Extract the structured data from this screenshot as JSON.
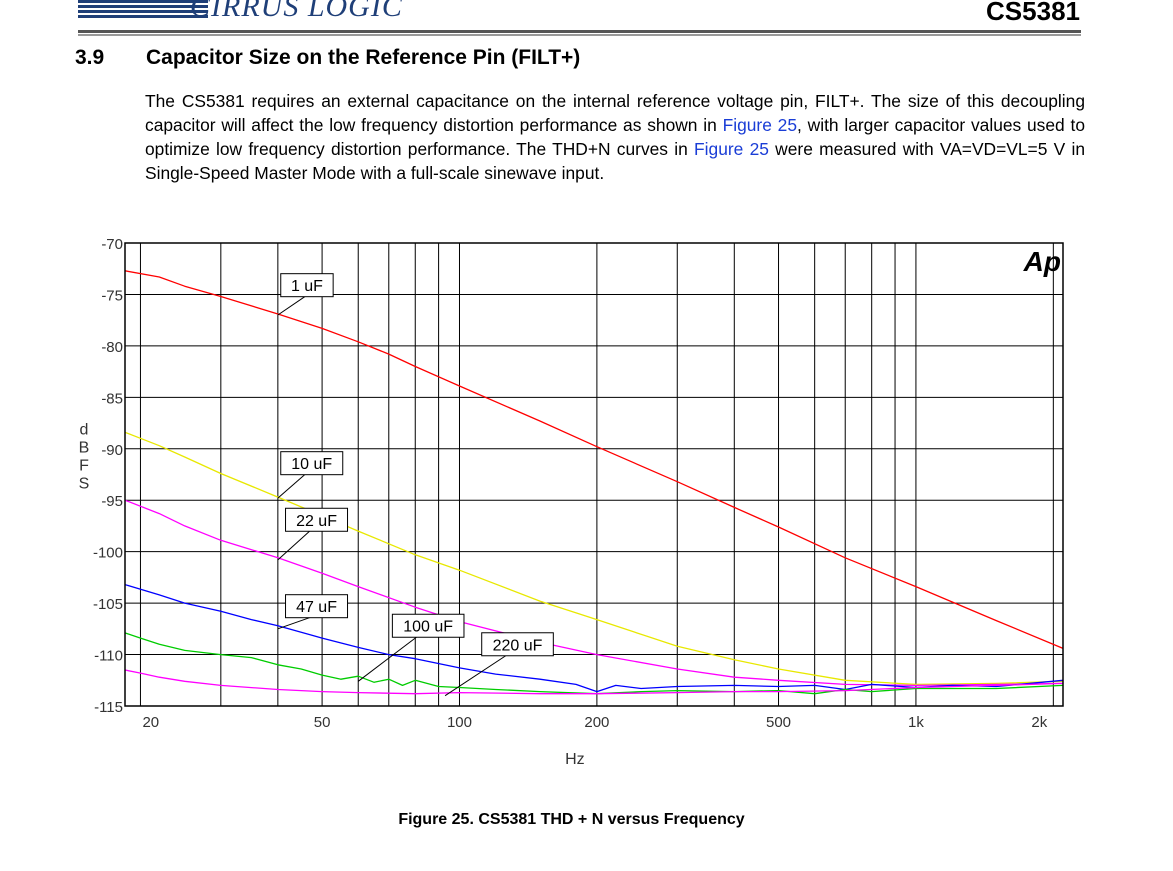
{
  "header": {
    "logo_text": "CIRRUS LOGIC",
    "part_number": "CS5381"
  },
  "section": {
    "number": "3.9",
    "title": "Capacitor Size on the Reference Pin (FILT+)",
    "para_1": "The CS5381 requires an external capacitance on the internal reference voltage pin, FILT+. The size of this decoupling capacitor will affect the low frequency distortion performance as shown in ",
    "xref_1": "Figure 25",
    "para_2": ", with larger capacitor values used to optimize low frequency distortion performance. The THD+N curves in ",
    "xref_2": "Figure 25",
    "para_3": " were measured with VA=VD=VL=5 V in Single-Speed Master Mode with a full-scale sinewave input."
  },
  "figure": {
    "caption": "Figure 25.  CS5381 THD + N versus Frequency",
    "badge": "Ap"
  },
  "chart_data": {
    "type": "line",
    "title": "",
    "xlabel": "Hz",
    "ylabel": "dBFS",
    "xscale": "log",
    "xlim": [
      18.5,
      2100
    ],
    "ylim": [
      -115,
      -70
    ],
    "grid": true,
    "yticks": [
      -70,
      -75,
      -80,
      -85,
      -90,
      -95,
      -100,
      -105,
      -110,
      -115
    ],
    "xticks": [
      {
        "value": 20,
        "label": "20"
      },
      {
        "value": 50,
        "label": "50"
      },
      {
        "value": 100,
        "label": "100"
      },
      {
        "value": 200,
        "label": "200"
      },
      {
        "value": 500,
        "label": "500"
      },
      {
        "value": 1000,
        "label": "1k"
      },
      {
        "value": 2000,
        "label": "2k"
      }
    ],
    "series": [
      {
        "name": "1 uF",
        "color": "#ff0000",
        "label_at": [
          41,
          -74.1
        ],
        "pointer_to": [
          40,
          -77
        ],
        "points": [
          [
            18.5,
            -72.7
          ],
          [
            22,
            -73.3
          ],
          [
            25,
            -74.2
          ],
          [
            30,
            -75.2
          ],
          [
            40,
            -76.9
          ],
          [
            50,
            -78.3
          ],
          [
            60,
            -79.6
          ],
          [
            70,
            -80.8
          ],
          [
            80,
            -82.0
          ],
          [
            100,
            -83.9
          ],
          [
            150,
            -87.3
          ],
          [
            200,
            -89.8
          ],
          [
            300,
            -93.2
          ],
          [
            400,
            -95.7
          ],
          [
            500,
            -97.6
          ],
          [
            700,
            -100.6
          ],
          [
            1000,
            -103.4
          ],
          [
            1500,
            -106.7
          ],
          [
            2100,
            -109.4
          ]
        ]
      },
      {
        "name": "10 uF",
        "color": "#e8e800",
        "label_at": [
          41,
          -91.4
        ],
        "pointer_to": [
          40,
          -94.8
        ],
        "points": [
          [
            18.5,
            -88.4
          ],
          [
            22,
            -89.7
          ],
          [
            25,
            -90.8
          ],
          [
            30,
            -92.4
          ],
          [
            40,
            -94.7
          ],
          [
            50,
            -96.5
          ],
          [
            60,
            -98.0
          ],
          [
            80,
            -100.3
          ],
          [
            100,
            -101.8
          ],
          [
            150,
            -104.8
          ],
          [
            200,
            -106.6
          ],
          [
            300,
            -109.2
          ],
          [
            400,
            -110.5
          ],
          [
            500,
            -111.4
          ],
          [
            700,
            -112.5
          ],
          [
            1000,
            -112.9
          ],
          [
            1500,
            -112.8
          ],
          [
            2100,
            -112.6
          ]
        ]
      },
      {
        "name": "22 uF",
        "color": "#ff00ff",
        "label_at": [
          42,
          -96.9
        ],
        "pointer_to": [
          40,
          -100.8
        ],
        "points": [
          [
            18.5,
            -95.0
          ],
          [
            22,
            -96.3
          ],
          [
            25,
            -97.5
          ],
          [
            30,
            -98.9
          ],
          [
            40,
            -100.6
          ],
          [
            50,
            -102.1
          ],
          [
            60,
            -103.4
          ],
          [
            80,
            -105.4
          ],
          [
            100,
            -106.8
          ],
          [
            150,
            -108.8
          ],
          [
            200,
            -110.0
          ],
          [
            300,
            -111.4
          ],
          [
            400,
            -112.2
          ],
          [
            500,
            -112.5
          ],
          [
            700,
            -112.9
          ],
          [
            1000,
            -113.0
          ],
          [
            1500,
            -112.9
          ],
          [
            2100,
            -112.8
          ]
        ]
      },
      {
        "name": "47 uF",
        "color": "#0000ff",
        "label_at": [
          42,
          -105.3
        ],
        "pointer_to": [
          40,
          -107.5
        ],
        "points": [
          [
            18.5,
            -103.2
          ],
          [
            22,
            -104.2
          ],
          [
            25,
            -105.0
          ],
          [
            30,
            -105.8
          ],
          [
            35,
            -106.6
          ],
          [
            40,
            -107.2
          ],
          [
            50,
            -108.4
          ],
          [
            60,
            -109.3
          ],
          [
            70,
            -110.0
          ],
          [
            80,
            -110.4
          ],
          [
            100,
            -111.3
          ],
          [
            120,
            -111.9
          ],
          [
            150,
            -112.4
          ],
          [
            180,
            -112.9
          ],
          [
            200,
            -113.6
          ],
          [
            220,
            -113.0
          ],
          [
            250,
            -113.3
          ],
          [
            300,
            -113.1
          ],
          [
            400,
            -113.0
          ],
          [
            500,
            -113.1
          ],
          [
            600,
            -113.0
          ],
          [
            700,
            -113.4
          ],
          [
            800,
            -112.9
          ],
          [
            1000,
            -113.2
          ],
          [
            1200,
            -113.0
          ],
          [
            1500,
            -113.1
          ],
          [
            2100,
            -112.5
          ]
        ]
      },
      {
        "name": "100 uF",
        "color": "#00cc00",
        "label_at": [
          72,
          -107.2
        ],
        "pointer_to": [
          60,
          -112.6
        ],
        "points": [
          [
            18.5,
            -107.9
          ],
          [
            20,
            -108.4
          ],
          [
            22,
            -109.0
          ],
          [
            25,
            -109.6
          ],
          [
            30,
            -110.0
          ],
          [
            35,
            -110.3
          ],
          [
            40,
            -111.0
          ],
          [
            45,
            -111.4
          ],
          [
            50,
            -112.0
          ],
          [
            55,
            -112.4
          ],
          [
            60,
            -112.1
          ],
          [
            65,
            -112.7
          ],
          [
            70,
            -112.4
          ],
          [
            75,
            -113.0
          ],
          [
            80,
            -112.5
          ],
          [
            90,
            -113.1
          ],
          [
            100,
            -113.2
          ],
          [
            120,
            -113.4
          ],
          [
            150,
            -113.6
          ],
          [
            200,
            -113.8
          ],
          [
            250,
            -113.6
          ],
          [
            300,
            -113.5
          ],
          [
            400,
            -113.6
          ],
          [
            500,
            -113.5
          ],
          [
            600,
            -113.8
          ],
          [
            700,
            -113.4
          ],
          [
            800,
            -113.6
          ],
          [
            1000,
            -113.3
          ],
          [
            1500,
            -113.3
          ],
          [
            2100,
            -113.0
          ]
        ]
      },
      {
        "name": "220 uF",
        "color": "#ff00ff",
        "label_at": [
          113,
          -109.0
        ],
        "pointer_to": [
          93,
          -114.0
        ],
        "points": [
          [
            18.5,
            -111.5
          ],
          [
            20,
            -111.8
          ],
          [
            22,
            -112.2
          ],
          [
            25,
            -112.6
          ],
          [
            30,
            -113.0
          ],
          [
            40,
            -113.4
          ],
          [
            50,
            -113.6
          ],
          [
            60,
            -113.7
          ],
          [
            80,
            -113.8
          ],
          [
            100,
            -113.7
          ],
          [
            150,
            -113.8
          ],
          [
            200,
            -113.8
          ],
          [
            300,
            -113.7
          ],
          [
            400,
            -113.6
          ],
          [
            500,
            -113.6
          ],
          [
            700,
            -113.5
          ],
          [
            1000,
            -113.2
          ],
          [
            1500,
            -113.0
          ],
          [
            2100,
            -112.8
          ]
        ]
      }
    ]
  }
}
